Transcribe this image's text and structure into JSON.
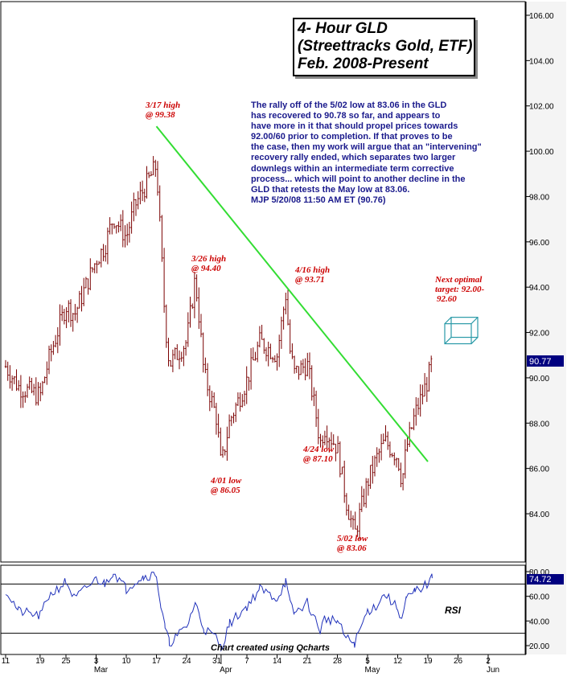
{
  "title": {
    "lines": [
      "4- Hour GLD",
      "(Streettracks Gold, ETF)",
      "Feb. 2008-Present"
    ]
  },
  "commentary": {
    "lines": [
      "The rally off of the 5/02 low at 83.06 in the GLD",
      "has recovered to 90.78 so far, and appears to",
      "have more in it that should propel prices towards",
      "92.00/60 prior to completion. If that proves to be",
      "the case, then my work will argue that an \"intervening\"",
      "recovery rally ended, which separates two larger",
      "downlegs within an intermediate term corrective",
      "process... which will point to another decline in the",
      "GLD that retests the May low at 83.06.",
      "MJP 5/20/08  11:50 AM ET  (90.76)"
    ]
  },
  "annotations": [
    {
      "id": "high-317",
      "line1": "3/17 high",
      "line2": "@ 99.38"
    },
    {
      "id": "high-326",
      "line1": "3/26 high",
      "line2": "@ 94.40"
    },
    {
      "id": "high-416",
      "line1": "4/16 high",
      "line2": "@ 93.71"
    },
    {
      "id": "low-401",
      "line1": "4/01 low",
      "line2": "@ 86.05"
    },
    {
      "id": "low-424",
      "line1": "4/24 low",
      "line2": "@ 87.10"
    },
    {
      "id": "low-502",
      "line1": "5/02 low",
      "line2": "@ 83.06"
    },
    {
      "id": "target",
      "line1": "Next optimal",
      "line2": "target: 92.00-",
      "line3": "92.60"
    }
  ],
  "credit": "Chart created using Qcharts",
  "rsi_label": "RSI",
  "last_price_label": "90.77",
  "rsi_last_label": "74.72",
  "colors": {
    "candles": "#7a0000",
    "trendline": "#33dd33",
    "rsi_line": "#2233bb",
    "commentary": "#1a1a8c",
    "annotation": "#cc0000",
    "target_box": "#2a9aa8",
    "label_bg": "#000080"
  },
  "chart_data": [
    {
      "type": "ohlc",
      "title": "4- Hour GLD (Streettracks Gold, ETF) Feb. 2008-Present",
      "ylim": [
        82.0,
        106.5
      ],
      "y_ticks": [
        "84.00",
        "86.00",
        "88.00",
        "90.00",
        "92.00",
        "94.00",
        "96.00",
        "98.00",
        "100.00",
        "102.00",
        "104.00",
        "106.00"
      ],
      "x_ticks": [
        "11",
        "19",
        "25",
        "3",
        "10",
        "17",
        "24",
        "31",
        "7",
        "14",
        "21",
        "28",
        "5",
        "12",
        "19",
        "26",
        "2"
      ],
      "x_month_labels": [
        "Mar",
        "Apr",
        "May",
        "Jun"
      ],
      "grid": false,
      "series_close_path": [
        [
          "2/11",
          90.5
        ],
        [
          "2/14",
          89.6
        ],
        [
          "2/19",
          89.2
        ],
        [
          "2/21",
          90.8
        ],
        [
          "2/25",
          93.2
        ],
        [
          "2/27",
          92.8
        ],
        [
          "3/3",
          95.2
        ],
        [
          "3/5",
          95.8
        ],
        [
          "3/7",
          97.1
        ],
        [
          "3/10",
          96.2
        ],
        [
          "3/12",
          97.6
        ],
        [
          "3/14",
          98.3
        ],
        [
          "3/17",
          99.38
        ],
        [
          "3/18",
          96.0
        ],
        [
          "3/19",
          92.5
        ],
        [
          "3/20",
          90.6
        ],
        [
          "3/24",
          91.6
        ],
        [
          "3/26",
          94.4
        ],
        [
          "3/27",
          92.5
        ],
        [
          "3/28",
          90.2
        ],
        [
          "3/31",
          88.2
        ],
        [
          "4/1",
          86.05
        ],
        [
          "4/3",
          88.1
        ],
        [
          "4/7",
          89.9
        ],
        [
          "4/10",
          91.6
        ],
        [
          "4/14",
          91.0
        ],
        [
          "4/16",
          93.71
        ],
        [
          "4/17",
          91.2
        ],
        [
          "4/18",
          90.2
        ],
        [
          "4/21",
          90.6
        ],
        [
          "4/23",
          88.4
        ],
        [
          "4/24",
          87.1
        ],
        [
          "4/25",
          87.8
        ],
        [
          "4/28",
          86.9
        ],
        [
          "4/30",
          84.6
        ],
        [
          "5/2",
          83.06
        ],
        [
          "5/5",
          85.4
        ],
        [
          "5/7",
          86.4
        ],
        [
          "5/9",
          87.2
        ],
        [
          "5/12",
          86.5
        ],
        [
          "5/13",
          85.4
        ],
        [
          "5/14",
          86.9
        ],
        [
          "5/15",
          87.6
        ],
        [
          "5/16",
          88.4
        ],
        [
          "5/19",
          89.9
        ],
        [
          "5/20",
          90.77
        ]
      ],
      "annotations": [
        {
          "date": "3/17",
          "text": "3/17 high @ 99.38",
          "value": 99.38
        },
        {
          "date": "3/26",
          "text": "3/26 high @ 94.40",
          "value": 94.4
        },
        {
          "date": "4/16",
          "text": "4/16 high @ 93.71",
          "value": 93.71
        },
        {
          "date": "4/1",
          "text": "4/01 low @ 86.05",
          "value": 86.05
        },
        {
          "date": "4/24",
          "text": "4/24 low @ 87.10",
          "value": 87.1
        },
        {
          "date": "5/2",
          "text": "5/02 low @ 83.06",
          "value": 83.06
        }
      ],
      "trendline": {
        "from": [
          "3/17",
          101.1
        ],
        "to": [
          "5/19",
          86.3
        ]
      },
      "target_zone": [
        92.0,
        92.6
      ],
      "last_price": 90.77
    },
    {
      "type": "line",
      "title": "RSI",
      "ylim": [
        15,
        82
      ],
      "y_ticks": [
        "20.00",
        "40.00",
        "60.00",
        "80.00"
      ],
      "reference_lines": [
        70,
        30
      ],
      "last_value": 74.72
    }
  ]
}
